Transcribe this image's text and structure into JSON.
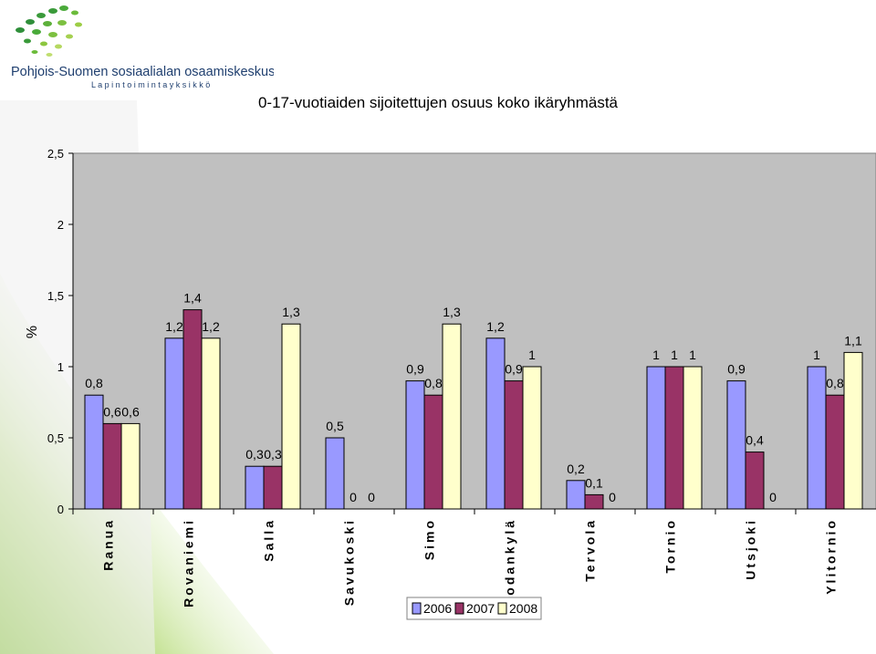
{
  "organization": {
    "name": "Pohjois-Suomen sosiaalialan osaamiskeskus",
    "unit": "L a p i n   t o i m i n t a y k s i k k ö"
  },
  "colors": {
    "series_2006": "#9999ff",
    "series_2007": "#993366",
    "series_2008": "#ffffcc",
    "plot_bg": "#c0c0c0",
    "accent_green": "#8cc63f"
  },
  "chart_data": {
    "type": "bar",
    "title": "0-17-vuotiaiden sijoitettujen osuus koko ikäryhmästä",
    "ylabel": "%",
    "xlabel": "",
    "ylim": [
      0,
      2.5
    ],
    "yticks": [
      0,
      0.5,
      1,
      1.5,
      2,
      2.5
    ],
    "ytick_labels": [
      "0",
      "0,5",
      "1",
      "1,5",
      "2",
      "2,5"
    ],
    "grid": false,
    "legend_position": "bottom",
    "categories": [
      "Ranua",
      "Rovaniemi",
      "Salla",
      "Savukoski",
      "Simo",
      "Sodankylä",
      "Tervola",
      "Tornio",
      "Utsjoki",
      "Ylitornio"
    ],
    "series": [
      {
        "name": "2006",
        "values": [
          0.8,
          1.2,
          0.3,
          0.5,
          0.9,
          1.2,
          0.2,
          1,
          0.9,
          1
        ],
        "labels": [
          "0,8",
          "1,2",
          "0,3",
          "0,5",
          "0,9",
          "1,2",
          "0,2",
          "1",
          "0,9",
          "1"
        ]
      },
      {
        "name": "2007",
        "values": [
          0.6,
          1.4,
          0.3,
          0,
          0.8,
          0.9,
          0.1,
          1,
          0.4,
          0.8
        ],
        "labels": [
          "0,6",
          "1,4",
          "0,3",
          "0",
          "0,8",
          "0,9",
          "0,1",
          "1",
          "0,4",
          "0,8"
        ]
      },
      {
        "name": "2008",
        "values": [
          0.6,
          1.2,
          1.3,
          0,
          1.3,
          1,
          0,
          1,
          0,
          1.1
        ],
        "labels": [
          "0,6",
          "1,2",
          "1,3",
          "0",
          "1,3",
          "1",
          "0",
          "1",
          "0",
          "1,1"
        ]
      }
    ]
  }
}
